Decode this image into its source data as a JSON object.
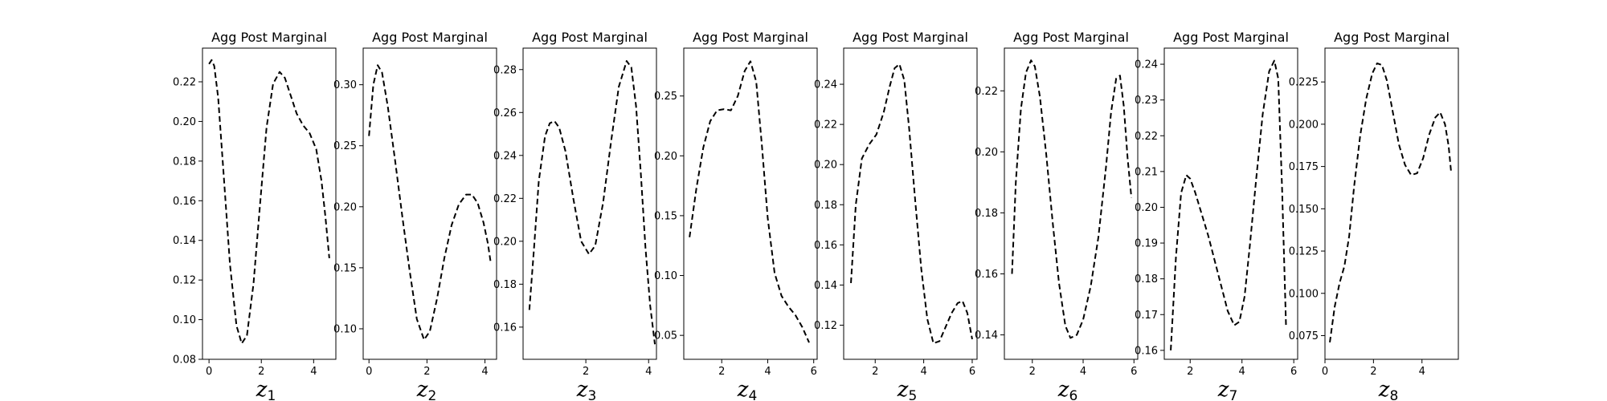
{
  "figure": {
    "background": "#ffffff",
    "line_color": "#000000",
    "line_style": "dashed"
  },
  "chart_data": [
    {
      "type": "line",
      "title": "Agg Post Marginal",
      "xlabel": "z",
      "xlabel_sub": "1",
      "xlim": [
        -0.25,
        4.85
      ],
      "ylim": [
        0.08,
        0.237
      ],
      "xticks": [
        0,
        2,
        4
      ],
      "xtick_labels": [
        "0",
        "2",
        "4"
      ],
      "yticks": [
        0.08,
        0.1,
        0.12,
        0.14,
        0.16,
        0.18,
        0.2,
        0.22
      ],
      "ytick_labels": [
        "0.08",
        "0.10",
        "0.12",
        "0.14",
        "0.16",
        "0.18",
        "0.20",
        "0.22"
      ],
      "series": [
        {
          "x": [
            0,
            0.1,
            0.2,
            0.35,
            0.55,
            0.8,
            1.05,
            1.25,
            1.45,
            1.7,
            1.95,
            2.2,
            2.45,
            2.7,
            2.9,
            3.1,
            3.35,
            3.6,
            3.85,
            4.1,
            4.3,
            4.45,
            4.6
          ],
          "y": [
            0.229,
            0.231,
            0.228,
            0.212,
            0.175,
            0.128,
            0.097,
            0.088,
            0.092,
            0.118,
            0.158,
            0.197,
            0.219,
            0.225,
            0.222,
            0.214,
            0.204,
            0.198,
            0.194,
            0.186,
            0.17,
            0.152,
            0.131
          ]
        }
      ]
    },
    {
      "type": "line",
      "title": "Agg Post Marginal",
      "xlabel": "z",
      "xlabel_sub": "2",
      "xlim": [
        -0.2,
        4.4
      ],
      "ylim": [
        0.075,
        0.33
      ],
      "xticks": [
        0,
        2,
        4
      ],
      "xtick_labels": [
        "0",
        "2",
        "4"
      ],
      "yticks": [
        0.1,
        0.15,
        0.2,
        0.25,
        0.3
      ],
      "ytick_labels": [
        "0.10",
        "0.15",
        "0.20",
        "0.25",
        "0.30"
      ],
      "series": [
        {
          "x": [
            0,
            0.15,
            0.3,
            0.45,
            0.65,
            0.9,
            1.15,
            1.4,
            1.65,
            1.9,
            2.1,
            2.35,
            2.6,
            2.85,
            3.1,
            3.35,
            3.55,
            3.75,
            3.95,
            4.1,
            4.2
          ],
          "y": [
            0.258,
            0.3,
            0.316,
            0.31,
            0.282,
            0.238,
            0.192,
            0.148,
            0.108,
            0.091,
            0.098,
            0.125,
            0.158,
            0.185,
            0.202,
            0.21,
            0.21,
            0.203,
            0.187,
            0.17,
            0.154
          ]
        }
      ]
    },
    {
      "type": "line",
      "title": "Agg Post Marginal",
      "xlabel": "z",
      "xlabel_sub": "3",
      "xlim": [
        0.0,
        4.25
      ],
      "ylim": [
        0.145,
        0.29
      ],
      "xticks": [
        2,
        4
      ],
      "xtick_labels": [
        "2",
        "4"
      ],
      "yticks": [
        0.16,
        0.18,
        0.2,
        0.22,
        0.24,
        0.26,
        0.28
      ],
      "ytick_labels": [
        "0.16",
        "0.18",
        "0.20",
        "0.22",
        "0.24",
        "0.26",
        "0.28"
      ],
      "series": [
        {
          "x": [
            0.2,
            0.35,
            0.5,
            0.7,
            0.85,
            1.0,
            1.15,
            1.35,
            1.6,
            1.85,
            2.1,
            2.3,
            2.55,
            2.8,
            3.05,
            3.3,
            3.45,
            3.6,
            3.75,
            3.9,
            4.05,
            4.2
          ],
          "y": [
            0.168,
            0.197,
            0.228,
            0.249,
            0.255,
            0.256,
            0.253,
            0.242,
            0.22,
            0.2,
            0.194,
            0.198,
            0.218,
            0.246,
            0.272,
            0.284,
            0.281,
            0.263,
            0.232,
            0.197,
            0.17,
            0.152
          ]
        }
      ]
    },
    {
      "type": "line",
      "title": "Agg Post Marginal",
      "xlabel": "z",
      "xlabel_sub": "4",
      "xlim": [
        0.35,
        6.15
      ],
      "ylim": [
        0.03,
        0.29
      ],
      "xticks": [
        2,
        4,
        6
      ],
      "xtick_labels": [
        "2",
        "4",
        "6"
      ],
      "yticks": [
        0.05,
        0.1,
        0.15,
        0.2,
        0.25
      ],
      "ytick_labels": [
        "0.05",
        "0.10",
        "0.15",
        "0.20",
        "0.25"
      ],
      "series": [
        {
          "x": [
            0.6,
            0.9,
            1.2,
            1.5,
            1.8,
            2.1,
            2.4,
            2.7,
            3.0,
            3.25,
            3.5,
            3.75,
            4.0,
            4.3,
            4.6,
            4.9,
            5.2,
            5.5,
            5.8
          ],
          "y": [
            0.132,
            0.173,
            0.207,
            0.229,
            0.238,
            0.239,
            0.238,
            0.25,
            0.271,
            0.279,
            0.262,
            0.208,
            0.148,
            0.102,
            0.083,
            0.074,
            0.067,
            0.057,
            0.044
          ]
        }
      ]
    },
    {
      "type": "line",
      "title": "Agg Post Marginal",
      "xlabel": "z",
      "xlabel_sub": "5",
      "xlim": [
        0.7,
        6.2
      ],
      "ylim": [
        0.103,
        0.258
      ],
      "xticks": [
        2,
        4,
        6
      ],
      "xtick_labels": [
        "2",
        "4",
        "6"
      ],
      "yticks": [
        0.12,
        0.14,
        0.16,
        0.18,
        0.2,
        0.22,
        0.24
      ],
      "ytick_labels": [
        "0.12",
        "0.14",
        "0.16",
        "0.18",
        "0.20",
        "0.22",
        "0.24"
      ],
      "series": [
        {
          "x": [
            1.0,
            1.2,
            1.45,
            1.75,
            2.05,
            2.35,
            2.6,
            2.8,
            3.0,
            3.2,
            3.4,
            3.65,
            3.9,
            4.15,
            4.4,
            4.65,
            4.9,
            5.15,
            5.4,
            5.6,
            5.8,
            6.0
          ],
          "y": [
            0.141,
            0.18,
            0.203,
            0.21,
            0.215,
            0.226,
            0.239,
            0.248,
            0.25,
            0.242,
            0.218,
            0.182,
            0.148,
            0.123,
            0.111,
            0.112,
            0.119,
            0.126,
            0.131,
            0.132,
            0.126,
            0.113
          ]
        }
      ]
    },
    {
      "type": "line",
      "title": "Agg Post Marginal",
      "xlabel": "z",
      "xlabel_sub": "6",
      "xlim": [
        0.9,
        6.15
      ],
      "ylim": [
        0.132,
        0.234
      ],
      "xticks": [
        2,
        4,
        6
      ],
      "xtick_labels": [
        "2",
        "4",
        "6"
      ],
      "yticks": [
        0.14,
        0.16,
        0.18,
        0.2,
        0.22
      ],
      "ytick_labels": [
        "0.14",
        "0.16",
        "0.18",
        "0.20",
        "0.22"
      ],
      "series": [
        {
          "x": [
            1.2,
            1.35,
            1.55,
            1.75,
            1.95,
            2.1,
            2.3,
            2.55,
            2.8,
            3.05,
            3.3,
            3.5,
            3.75,
            4.0,
            4.3,
            4.6,
            4.9,
            5.1,
            5.3,
            5.45,
            5.6,
            5.75,
            5.9
          ],
          "y": [
            0.16,
            0.19,
            0.214,
            0.226,
            0.23,
            0.228,
            0.218,
            0.199,
            0.177,
            0.157,
            0.143,
            0.139,
            0.14,
            0.145,
            0.156,
            0.172,
            0.195,
            0.213,
            0.224,
            0.225,
            0.215,
            0.198,
            0.185
          ]
        }
      ]
    },
    {
      "type": "line",
      "title": "Agg Post Marginal",
      "xlabel": "z",
      "xlabel_sub": "7",
      "xlim": [
        1.0,
        6.15
      ],
      "ylim": [
        0.1575,
        0.2445
      ],
      "xticks": [
        2,
        4,
        6
      ],
      "xtick_labels": [
        "2",
        "4",
        "6"
      ],
      "yticks": [
        0.16,
        0.17,
        0.18,
        0.19,
        0.2,
        0.21,
        0.22,
        0.23,
        0.24
      ],
      "ytick_labels": [
        "0.16",
        "0.17",
        "0.18",
        "0.19",
        "0.20",
        "0.21",
        "0.22",
        "0.23",
        "0.24"
      ],
      "series": [
        {
          "x": [
            1.25,
            1.45,
            1.65,
            1.85,
            2.0,
            2.2,
            2.45,
            2.7,
            2.95,
            3.2,
            3.45,
            3.7,
            3.9,
            4.1,
            4.3,
            4.55,
            4.8,
            5.05,
            5.25,
            5.4,
            5.55,
            5.7
          ],
          "y": [
            0.16,
            0.186,
            0.204,
            0.209,
            0.208,
            0.204,
            0.198,
            0.192,
            0.185,
            0.178,
            0.171,
            0.167,
            0.168,
            0.175,
            0.189,
            0.208,
            0.226,
            0.238,
            0.241,
            0.236,
            0.205,
            0.167
          ]
        }
      ]
    },
    {
      "type": "line",
      "title": "Agg Post Marginal",
      "xlabel": "z",
      "xlabel_sub": "8",
      "xlim": [
        0.0,
        5.5
      ],
      "ylim": [
        0.061,
        0.245
      ],
      "xticks": [
        0,
        2,
        4
      ],
      "xtick_labels": [
        "0",
        "2",
        "4"
      ],
      "yticks": [
        0.075,
        0.1,
        0.125,
        0.15,
        0.175,
        0.2,
        0.225
      ],
      "ytick_labels": [
        "0.075",
        "0.100",
        "0.125",
        "0.150",
        "0.175",
        "0.200",
        "0.225"
      ],
      "series": [
        {
          "x": [
            0.2,
            0.4,
            0.6,
            0.8,
            1.0,
            1.2,
            1.45,
            1.7,
            1.95,
            2.15,
            2.35,
            2.55,
            2.8,
            3.05,
            3.3,
            3.55,
            3.8,
            4.05,
            4.3,
            4.55,
            4.75,
            4.95,
            5.1,
            5.2
          ],
          "y": [
            0.071,
            0.092,
            0.106,
            0.116,
            0.134,
            0.163,
            0.193,
            0.215,
            0.23,
            0.236,
            0.235,
            0.226,
            0.207,
            0.188,
            0.176,
            0.17,
            0.171,
            0.18,
            0.194,
            0.204,
            0.207,
            0.2,
            0.187,
            0.172
          ]
        }
      ]
    }
  ]
}
